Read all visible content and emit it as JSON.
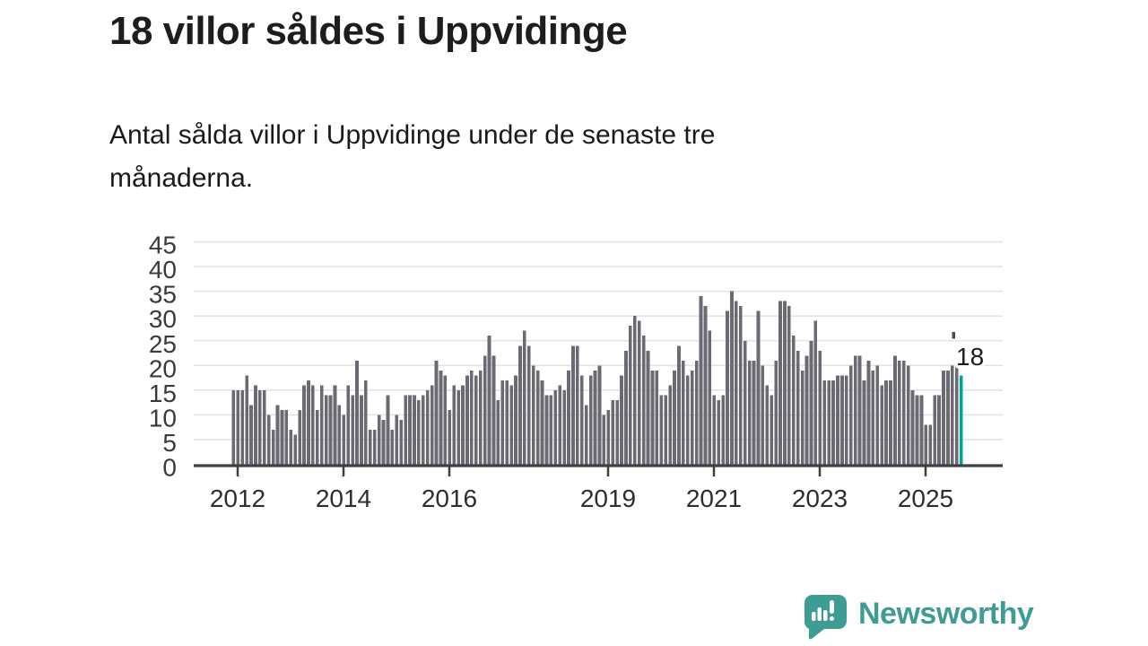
{
  "header": {
    "title": "18 villor såldes i Uppvidinge",
    "subtitle_lines": {
      "0": "Antal sålda villor i Uppvidinge under de senaste tre",
      "1": "månaderna."
    }
  },
  "chart_data": {
    "type": "bar",
    "title": "18 villor såldes i Uppvidinge",
    "subtitle": "Antal sålda villor i Uppvidinge under de senaste tre månaderna.",
    "xlabel": "",
    "ylabel": "",
    "ylim": [
      0,
      45
    ],
    "y_ticks": [
      0,
      5,
      10,
      15,
      20,
      25,
      30,
      35,
      40,
      45
    ],
    "grid": true,
    "start_year": 2012,
    "x_tick_labels": [
      "2012",
      "2014",
      "2016",
      "2019",
      "2021",
      "2023",
      "2025"
    ],
    "x_tick_year_offsets": [
      0,
      2,
      4,
      7,
      9,
      11,
      13
    ],
    "values": [
      15,
      15,
      15,
      18,
      12,
      16,
      15,
      15,
      10,
      7,
      12,
      11,
      11,
      7,
      6,
      11,
      16,
      17,
      16,
      11,
      16,
      14,
      14,
      16,
      12,
      10,
      16,
      14,
      21,
      14,
      17,
      7,
      7,
      10,
      9,
      14,
      7,
      10,
      9,
      14,
      14,
      14,
      13,
      14,
      15,
      16,
      21,
      19,
      18,
      11,
      16,
      15,
      16,
      18,
      19,
      18,
      19,
      22,
      26,
      22,
      13,
      17,
      17,
      16,
      18,
      24,
      27,
      24,
      20,
      19,
      17,
      14,
      14,
      15,
      16,
      15,
      19,
      24,
      24,
      18,
      12,
      18,
      19,
      20,
      10,
      11,
      13,
      13,
      18,
      23,
      28,
      30,
      29,
      26,
      23,
      19,
      19,
      14,
      14,
      16,
      19,
      24,
      21,
      18,
      19,
      21,
      34,
      32,
      27,
      14,
      13,
      14,
      31,
      35,
      33,
      32,
      25,
      21,
      21,
      31,
      20,
      16,
      14,
      21,
      33,
      33,
      32,
      26,
      23,
      19,
      22,
      25,
      29,
      23,
      17,
      17,
      17,
      18,
      18,
      18,
      20,
      22,
      22,
      17,
      21,
      19,
      20,
      16,
      17,
      17,
      22,
      21,
      21,
      20,
      15,
      14,
      14,
      8,
      8,
      14,
      14,
      19,
      19,
      20,
      20,
      18
    ],
    "highlight_index": 165,
    "annotation": {
      "label": "18"
    },
    "bar_color": "#6a6a72",
    "highlight_color": "#00a49c",
    "grid_color": "#e3e3e3",
    "axis_color": "#3f3f3f",
    "y_tick_text_color": "#3a3a3a",
    "x_tick_text_color": "#2e2e2e",
    "annotation_text_color": "#1d1d1d"
  },
  "branding": {
    "name": "Newsworthy",
    "color": "#3e9c95",
    "icon": "newsworthy-speech-bubble-chart-icon"
  }
}
